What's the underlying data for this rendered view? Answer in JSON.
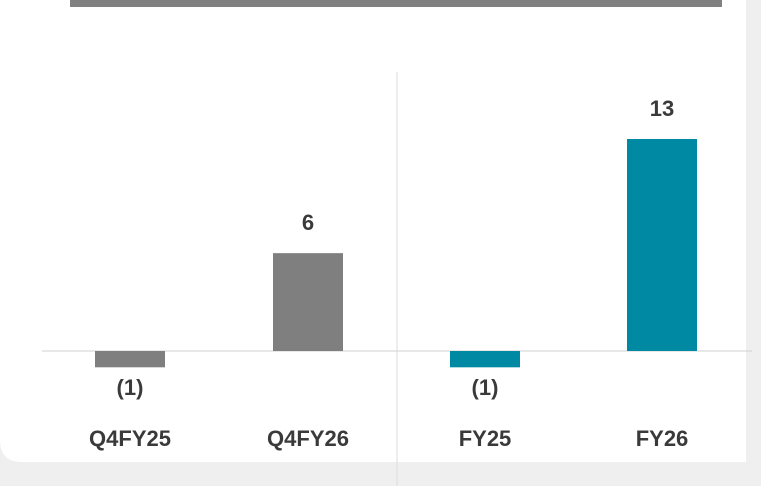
{
  "chart_data": {
    "type": "bar",
    "categories": [
      "Q4FY25",
      "Q4FY26",
      "FY25",
      "FY26"
    ],
    "values": [
      -1,
      6,
      -1,
      13
    ],
    "value_labels": [
      "(1)",
      "6",
      "(1)",
      "13"
    ],
    "colors": [
      "#7f7f7f",
      "#7f7f7f",
      "#0089a3",
      "#0089a3"
    ]
  }
}
